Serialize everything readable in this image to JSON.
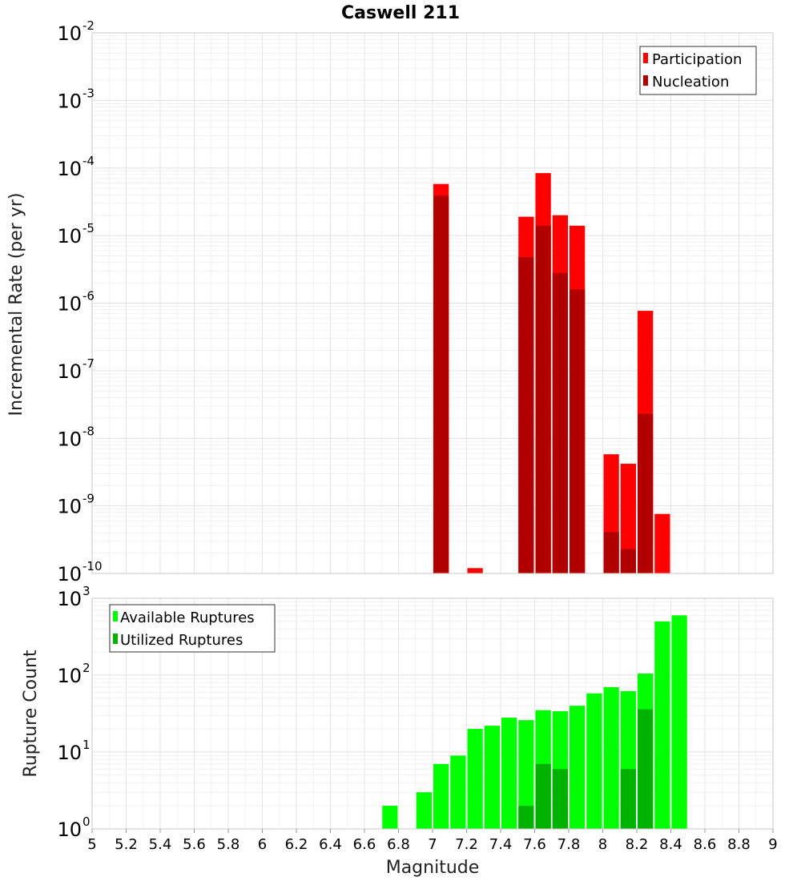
{
  "title": "Caswell 211",
  "xlabel": "Magnitude",
  "x_ticks": [
    "5",
    "5.2",
    "5.4",
    "5.6",
    "5.8",
    "6",
    "6.2",
    "6.4",
    "6.6",
    "6.8",
    "7",
    "7.2",
    "7.4",
    "7.6",
    "7.8",
    "8",
    "8.2",
    "8.4",
    "8.6",
    "8.8",
    "9"
  ],
  "colors": {
    "participation": "#ff0000",
    "nucleation": "#b20000",
    "available": "#00ff00",
    "utilized": "#00b200",
    "grid": "#ececec",
    "frame": "#c8c8c8"
  },
  "chart_data": [
    {
      "type": "bar",
      "title": "Caswell 211",
      "ylabel": "Incremental Rate (per yr)",
      "yscale": "log",
      "xlim": [
        5,
        9
      ],
      "ylim_exponents": [
        -10,
        -2
      ],
      "y_tick_labels": [
        {
          "base": "10",
          "exp": "-2"
        },
        {
          "base": "10",
          "exp": "-3"
        },
        {
          "base": "10",
          "exp": "-4"
        },
        {
          "base": "10",
          "exp": "-5"
        },
        {
          "base": "10",
          "exp": "-6"
        },
        {
          "base": "10",
          "exp": "-7"
        },
        {
          "base": "10",
          "exp": "-8"
        },
        {
          "base": "10",
          "exp": "-9"
        },
        {
          "base": "10",
          "exp": "-10"
        }
      ],
      "grid": true,
      "legend_position": "top-right",
      "x": [
        7.05,
        7.25,
        7.55,
        7.65,
        7.75,
        7.85,
        8.05,
        8.15,
        8.25,
        8.35
      ],
      "series": [
        {
          "name": "Participation",
          "color": "#ff0000",
          "values": [
            5.8e-05,
            1.2e-10,
            1.9e-05,
            8.4e-05,
            2e-05,
            1.4e-05,
            5.8e-09,
            4.2e-09,
            7.7e-07,
            7.6e-10
          ]
        },
        {
          "name": "Nucleation",
          "color": "#b20000",
          "values": [
            3.9e-05,
            null,
            4.8e-06,
            1.4e-05,
            2.8e-06,
            1.6e-06,
            4.1e-10,
            2.3e-10,
            2.3e-08,
            null
          ]
        }
      ]
    },
    {
      "type": "bar",
      "ylabel": "Rupture Count",
      "yscale": "log",
      "xlim": [
        5,
        9
      ],
      "ylim_exponents": [
        0,
        3
      ],
      "y_tick_labels": [
        {
          "base": "10",
          "exp": "3"
        },
        {
          "base": "10",
          "exp": "2"
        },
        {
          "base": "10",
          "exp": "1"
        },
        {
          "base": "10",
          "exp": "0"
        }
      ],
      "grid": true,
      "legend_position": "top-left",
      "x": [
        6.75,
        6.85,
        6.95,
        7.05,
        7.15,
        7.25,
        7.35,
        7.45,
        7.55,
        7.65,
        7.75,
        7.85,
        7.95,
        8.05,
        8.15,
        8.25,
        8.35,
        8.45
      ],
      "series": [
        {
          "name": "Available Ruptures",
          "color": "#00ff00",
          "values": [
            2,
            1,
            3,
            7,
            9,
            20,
            22,
            28,
            26,
            35,
            34,
            40,
            58,
            70,
            62,
            105,
            500,
            600
          ]
        },
        {
          "name": "Utilized Ruptures",
          "color": "#00b200",
          "values": [
            null,
            null,
            null,
            1,
            null,
            1,
            null,
            null,
            2,
            7,
            6,
            1,
            null,
            1,
            6,
            36,
            1,
            null
          ]
        }
      ]
    }
  ]
}
